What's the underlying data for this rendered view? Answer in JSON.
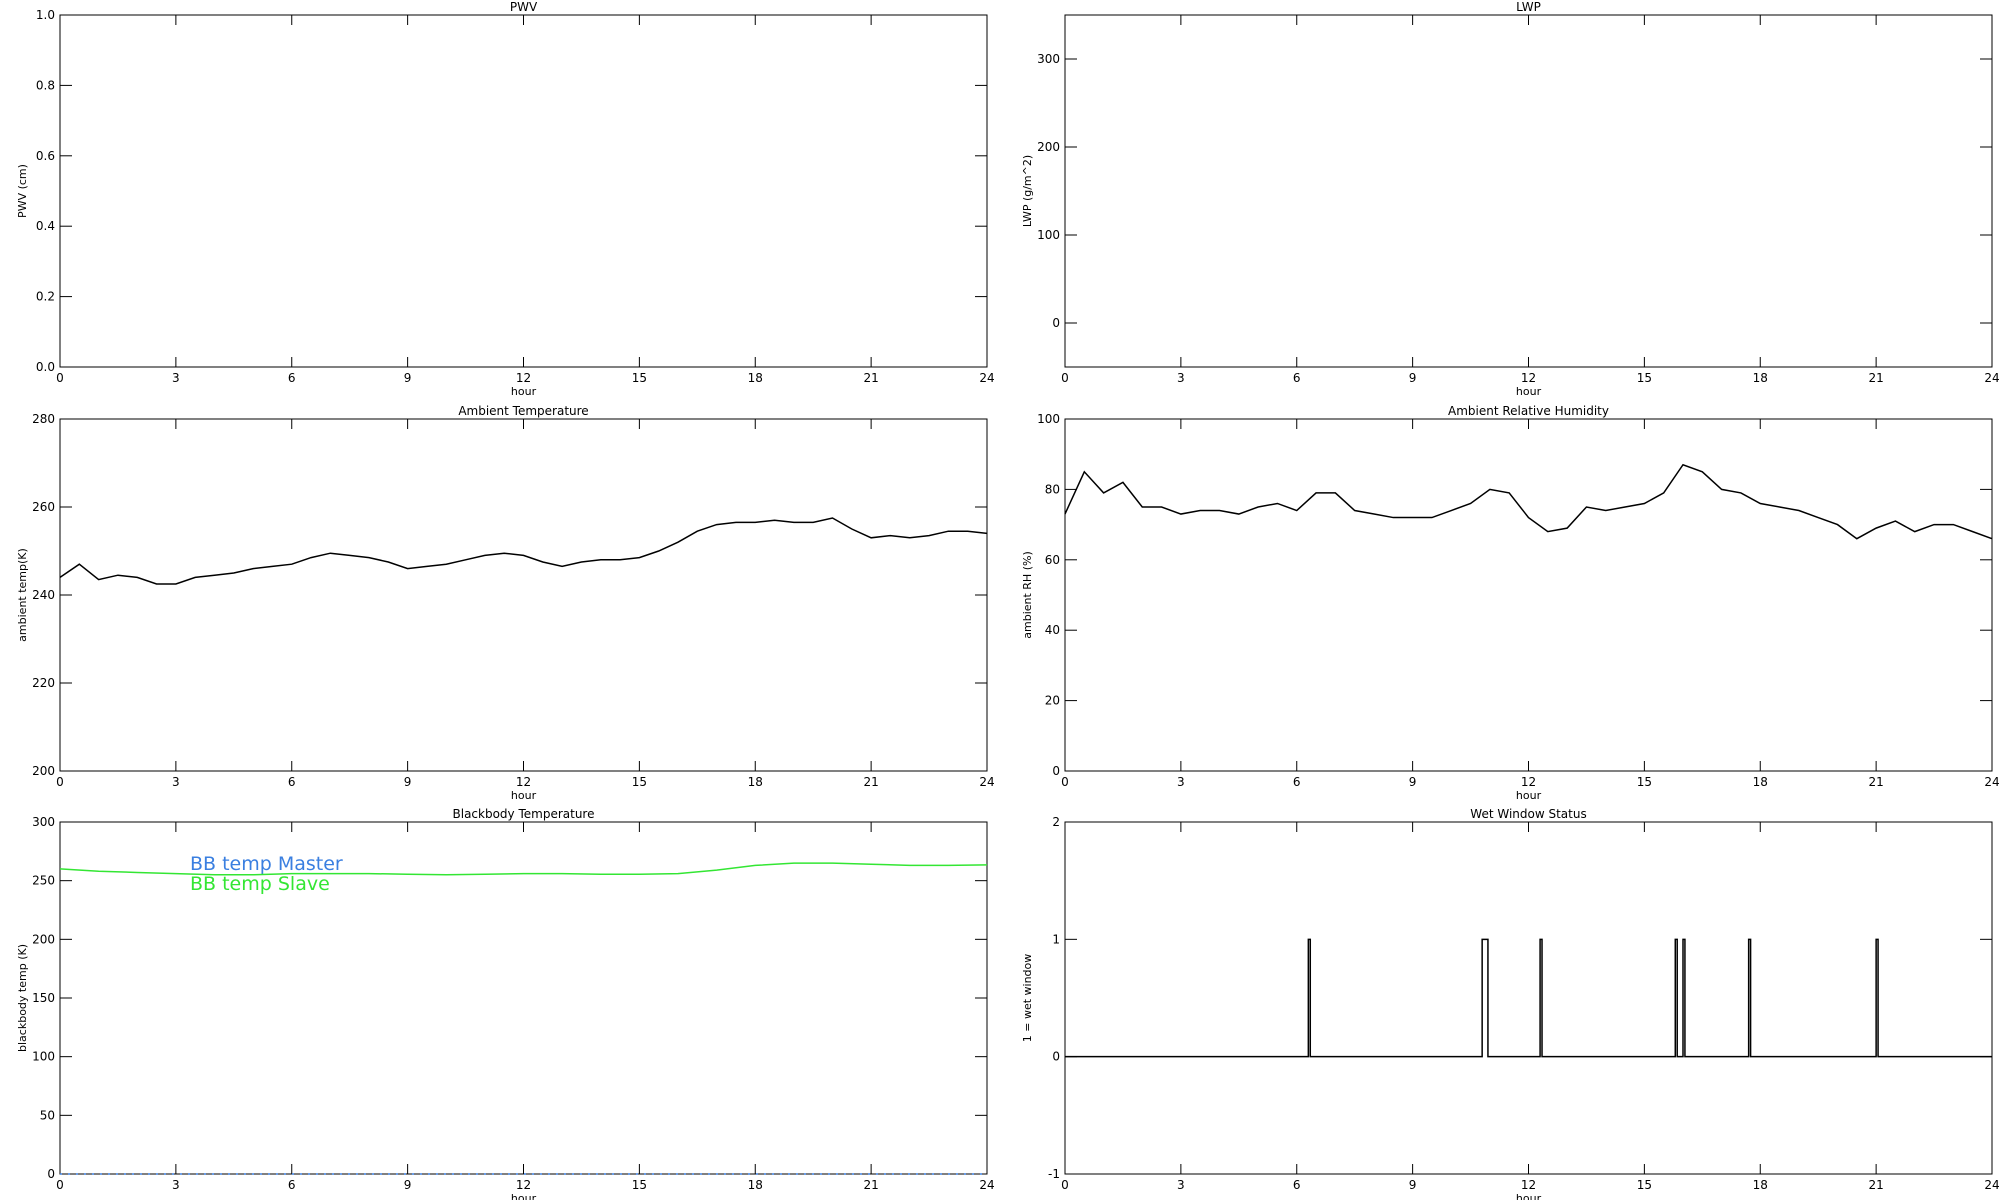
{
  "chart_data": [
    {
      "type": "line",
      "title": "PWV",
      "xlabel": "hour",
      "ylabel": "PWV (cm)",
      "xlim": [
        0,
        24
      ],
      "xticks": [
        0,
        3,
        6,
        9,
        12,
        15,
        18,
        21,
        24
      ],
      "ylim": [
        0,
        1
      ],
      "yticks": [
        {
          "value": 0,
          "label": "0.0"
        },
        {
          "value": 0.2,
          "label": "0.2"
        },
        {
          "value": 0.4,
          "label": "0.4"
        },
        {
          "value": 0.6,
          "label": "0.6"
        },
        {
          "value": 0.8,
          "label": "0.8"
        },
        {
          "value": 1,
          "label": "1.0"
        }
      ],
      "series": []
    },
    {
      "type": "line",
      "title": "LWP",
      "xlabel": "hour",
      "ylabel": "LWP (g/m^2)",
      "xlim": [
        0,
        24
      ],
      "xticks": [
        0,
        3,
        6,
        9,
        12,
        15,
        18,
        21,
        24
      ],
      "ylim": [
        -50,
        350
      ],
      "yticks": [
        0,
        100,
        200,
        300
      ],
      "series": []
    },
    {
      "type": "line",
      "title": "Ambient Temperature",
      "xlabel": "hour",
      "ylabel": "ambient temp(K)",
      "xlim": [
        0,
        24
      ],
      "xticks": [
        0,
        3,
        6,
        9,
        12,
        15,
        18,
        21,
        24
      ],
      "ylim": [
        200,
        280
      ],
      "yticks": [
        200,
        220,
        240,
        260,
        280
      ],
      "x": [
        0,
        0.5,
        1,
        1.5,
        2,
        2.5,
        3,
        3.5,
        4,
        4.5,
        5,
        5.5,
        6,
        6.5,
        7,
        7.5,
        8,
        8.5,
        9,
        9.5,
        10,
        10.5,
        11,
        11.5,
        12,
        12.5,
        13,
        13.5,
        14,
        14.5,
        15,
        15.5,
        16,
        16.5,
        17,
        17.5,
        18,
        18.5,
        19,
        19.5,
        20,
        20.5,
        21,
        21.5,
        22,
        22.5,
        23,
        23.5,
        24
      ],
      "series": [
        {
          "color": "#000000",
          "values": [
            244,
            247,
            243.5,
            244.5,
            244,
            242.5,
            242.5,
            244,
            244.5,
            245,
            246,
            246.5,
            247,
            248.5,
            249.5,
            249,
            248.5,
            247.5,
            246,
            246.5,
            247,
            248,
            249,
            249.5,
            249,
            247.5,
            246.5,
            247.5,
            248,
            248,
            248.5,
            250,
            252,
            254.5,
            256,
            256.5,
            256.5,
            257,
            256.5,
            256.5,
            257.5,
            255,
            253,
            253.5,
            253,
            253.5,
            254.5,
            254.5,
            254
          ]
        }
      ]
    },
    {
      "type": "line",
      "title": "Ambient Relative Humidity",
      "xlabel": "hour",
      "ylabel": "ambient RH (%)",
      "xlim": [
        0,
        24
      ],
      "xticks": [
        0,
        3,
        6,
        9,
        12,
        15,
        18,
        21,
        24
      ],
      "ylim": [
        0,
        100
      ],
      "yticks": [
        0,
        20,
        40,
        60,
        80,
        100
      ],
      "x": [
        0,
        0.5,
        1,
        1.5,
        2,
        2.5,
        3,
        3.5,
        4,
        4.5,
        5,
        5.5,
        6,
        6.5,
        7,
        7.5,
        8,
        8.5,
        9,
        9.5,
        10,
        10.5,
        11,
        11.5,
        12,
        12.5,
        13,
        13.5,
        14,
        14.5,
        15,
        15.5,
        16,
        16.5,
        17,
        17.5,
        18,
        18.5,
        19,
        19.5,
        20,
        20.5,
        21,
        21.5,
        22,
        22.5,
        23,
        23.5,
        24
      ],
      "series": [
        {
          "color": "#000000",
          "values": [
            73,
            85,
            79,
            82,
            75,
            75,
            73,
            74,
            74,
            73,
            75,
            76,
            74,
            79,
            79,
            74,
            73,
            72,
            72,
            72,
            74,
            76,
            80,
            79,
            72,
            68,
            69,
            75,
            74,
            75,
            76,
            79,
            87,
            85,
            80,
            79,
            76,
            75,
            74,
            72,
            70,
            66,
            69,
            71,
            68,
            70,
            70,
            68,
            66
          ]
        }
      ]
    },
    {
      "type": "line",
      "title": "Blackbody Temperature",
      "xlabel": "hour",
      "ylabel": "blackbody temp (K)",
      "xlim": [
        0,
        24
      ],
      "xticks": [
        0,
        3,
        6,
        9,
        12,
        15,
        18,
        21,
        24
      ],
      "ylim": [
        0,
        300
      ],
      "yticks": [
        0,
        50,
        100,
        150,
        200,
        250,
        300
      ],
      "x": [
        0,
        1,
        2,
        3,
        4,
        5,
        6,
        7,
        8,
        9,
        10,
        11,
        12,
        13,
        14,
        15,
        16,
        17,
        18,
        19,
        20,
        21,
        22,
        23,
        24
      ],
      "series": [
        {
          "name": "BB temp Master",
          "color": "#3a7fe0",
          "values": [
            0,
            0,
            0,
            0,
            0,
            0,
            0,
            0,
            0,
            0,
            0,
            0,
            0,
            0,
            0,
            0,
            0,
            0,
            0,
            0,
            0,
            0,
            0,
            0,
            0
          ]
        },
        {
          "name": "BB temp Slave",
          "color": "#33e633",
          "values": [
            260,
            258,
            257,
            256,
            255,
            255,
            256,
            256,
            256,
            255.5,
            255,
            255.5,
            256,
            256,
            255.5,
            255.5,
            256,
            259,
            263,
            265,
            265,
            264,
            263,
            263,
            263.5
          ]
        }
      ]
    },
    {
      "type": "line",
      "title": "Wet Window Status",
      "xlabel": "hour",
      "ylabel": "1 = wet window",
      "xlim": [
        0,
        24
      ],
      "xticks": [
        0,
        3,
        6,
        9,
        12,
        15,
        18,
        21,
        24
      ],
      "ylim": [
        -1,
        2
      ],
      "yticks": [
        -1,
        0,
        1,
        2
      ],
      "x": [
        0,
        6.3,
        6.3,
        6.35,
        6.35,
        10.8,
        10.8,
        10.95,
        10.95,
        12.3,
        12.3,
        12.35,
        12.35,
        15.8,
        15.8,
        15.85,
        15.85,
        16.0,
        16.0,
        16.05,
        16.05,
        17.7,
        17.7,
        17.75,
        17.75,
        21.0,
        21.0,
        21.05,
        21.05,
        24
      ],
      "series": [
        {
          "color": "#000000",
          "values": [
            0,
            0,
            1,
            1,
            0,
            0,
            1,
            1,
            0,
            0,
            1,
            1,
            0,
            0,
            1,
            1,
            0,
            0,
            1,
            1,
            0,
            0,
            1,
            1,
            0,
            0,
            1,
            1,
            0,
            0
          ]
        }
      ]
    }
  ]
}
